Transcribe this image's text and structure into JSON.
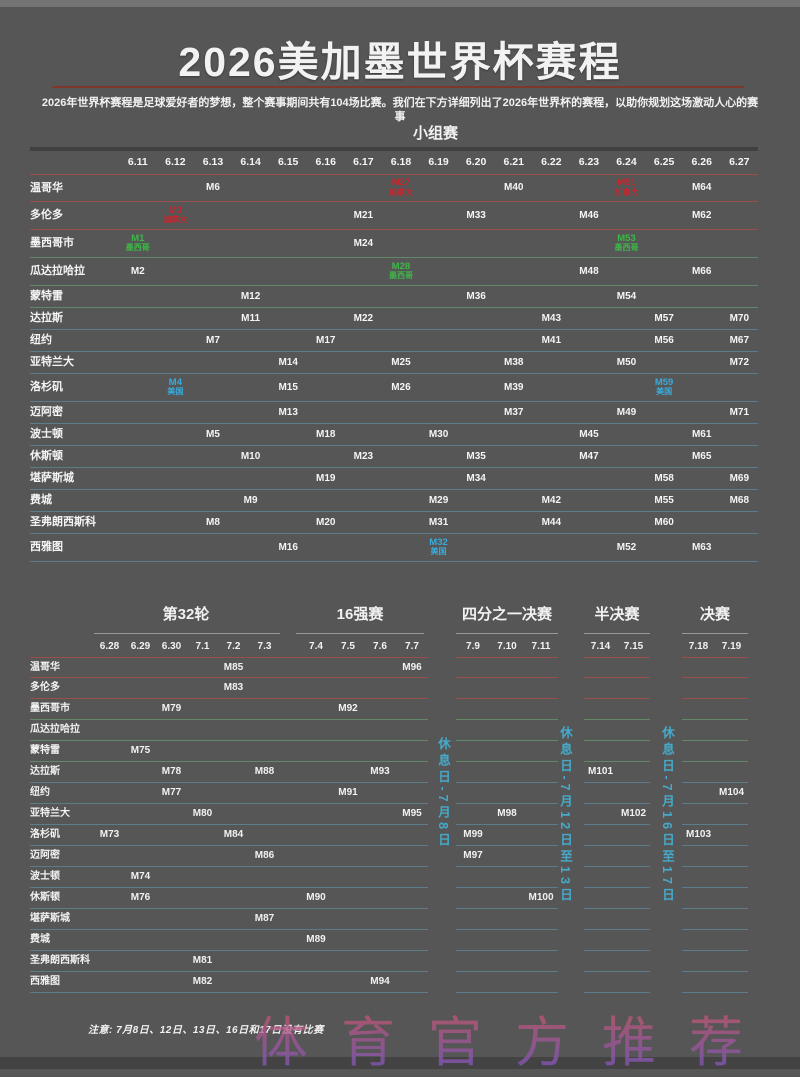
{
  "title": "2026美加墨世界杯赛程",
  "subtitle": "2026年世界杯赛程是足球爱好者的梦想，整个赛事期间共有104场比赛。我们在下方详细列出了2026年世界杯的赛程，以助你规划这场激动人心的赛事",
  "note": "注意: 7月8日、12日、13日、16日和17日没有比赛",
  "watermark": "体育官方推荐",
  "colors": {
    "background": "#565656",
    "mexico_green": "#3db848",
    "usa_blue": "#38abdc",
    "canada_red": "#c3282e",
    "title_rule_red": "#7d372b",
    "rest_day_cyan": "#45aacb",
    "watermark_top": "#c8566b",
    "watermark_bottom": "#7e58c8"
  },
  "chart_data": {
    "type": "table",
    "group_stage": {
      "title": "小组赛",
      "dates": [
        "6.11",
        "6.12",
        "6.13",
        "6.14",
        "6.15",
        "6.16",
        "6.17",
        "6.18",
        "6.19",
        "6.20",
        "6.21",
        "6.22",
        "6.23",
        "6.24",
        "6.25",
        "6.26",
        "6.27"
      ],
      "rows": [
        {
          "city": "温哥华",
          "country": "canada",
          "matches": [
            {
              "date": "6.13",
              "m": "M6"
            },
            {
              "date": "6.18",
              "m": "M27",
              "badge": "加拿大"
            },
            {
              "date": "6.21",
              "m": "M40"
            },
            {
              "date": "6.24",
              "m": "M51",
              "badge": "加拿大"
            },
            {
              "date": "6.26",
              "m": "M64"
            }
          ]
        },
        {
          "city": "多伦多",
          "country": "canada",
          "matches": [
            {
              "date": "6.12",
              "m": "M3",
              "badge": "加拿大"
            },
            {
              "date": "6.17",
              "m": "M21"
            },
            {
              "date": "6.20",
              "m": "M33"
            },
            {
              "date": "6.23",
              "m": "M46"
            },
            {
              "date": "6.26",
              "m": "M62"
            }
          ]
        },
        {
          "city": "墨西哥市",
          "country": "mexico",
          "matches": [
            {
              "date": "6.11",
              "m": "M1",
              "badge": "墨西哥"
            },
            {
              "date": "6.17",
              "m": "M24"
            },
            {
              "date": "6.24",
              "m": "M53",
              "badge": "墨西哥"
            }
          ]
        },
        {
          "city": "瓜达拉哈拉",
          "country": "mexico",
          "matches": [
            {
              "date": "6.11",
              "m": "M2"
            },
            {
              "date": "6.18",
              "m": "M28",
              "badge": "墨西哥"
            },
            {
              "date": "6.23",
              "m": "M48"
            },
            {
              "date": "6.26",
              "m": "M66"
            }
          ]
        },
        {
          "city": "蒙特雷",
          "country": "mexico",
          "matches": [
            {
              "date": "6.14",
              "m": "M12"
            },
            {
              "date": "6.20",
              "m": "M36"
            },
            {
              "date": "6.24",
              "m": "M54"
            }
          ]
        },
        {
          "city": "达拉斯",
          "country": "usa",
          "matches": [
            {
              "date": "6.14",
              "m": "M11"
            },
            {
              "date": "6.17",
              "m": "M22"
            },
            {
              "date": "6.22",
              "m": "M43"
            },
            {
              "date": "6.25",
              "m": "M57"
            },
            {
              "date": "6.27",
              "m": "M70"
            }
          ]
        },
        {
          "city": "纽约",
          "country": "usa",
          "matches": [
            {
              "date": "6.13",
              "m": "M7"
            },
            {
              "date": "6.16",
              "m": "M17"
            },
            {
              "date": "6.22",
              "m": "M41"
            },
            {
              "date": "6.25",
              "m": "M56"
            },
            {
              "date": "6.27",
              "m": "M67"
            }
          ]
        },
        {
          "city": "亚特兰大",
          "country": "usa",
          "matches": [
            {
              "date": "6.15",
              "m": "M14"
            },
            {
              "date": "6.18",
              "m": "M25"
            },
            {
              "date": "6.21",
              "m": "M38"
            },
            {
              "date": "6.24",
              "m": "M50"
            },
            {
              "date": "6.27",
              "m": "M72"
            }
          ]
        },
        {
          "city": "洛杉矶",
          "country": "usa",
          "matches": [
            {
              "date": "6.12",
              "m": "M4",
              "badge": "美国"
            },
            {
              "date": "6.15",
              "m": "M15"
            },
            {
              "date": "6.18",
              "m": "M26"
            },
            {
              "date": "6.21",
              "m": "M39"
            },
            {
              "date": "6.25",
              "m": "M59",
              "badge": "美国"
            }
          ]
        },
        {
          "city": "迈阿密",
          "country": "usa",
          "matches": [
            {
              "date": "6.15",
              "m": "M13"
            },
            {
              "date": "6.21",
              "m": "M37"
            },
            {
              "date": "6.24",
              "m": "M49"
            },
            {
              "date": "6.27",
              "m": "M71"
            }
          ]
        },
        {
          "city": "波士顿",
          "country": "usa",
          "matches": [
            {
              "date": "6.13",
              "m": "M5"
            },
            {
              "date": "6.16",
              "m": "M18"
            },
            {
              "date": "6.19",
              "m": "M30"
            },
            {
              "date": "6.23",
              "m": "M45"
            },
            {
              "date": "6.26",
              "m": "M61"
            }
          ]
        },
        {
          "city": "休斯顿",
          "country": "usa",
          "matches": [
            {
              "date": "6.14",
              "m": "M10"
            },
            {
              "date": "6.17",
              "m": "M23"
            },
            {
              "date": "6.20",
              "m": "M35"
            },
            {
              "date": "6.23",
              "m": "M47"
            },
            {
              "date": "6.26",
              "m": "M65"
            }
          ]
        },
        {
          "city": "堪萨斯城",
          "country": "usa",
          "matches": [
            {
              "date": "6.16",
              "m": "M19"
            },
            {
              "date": "6.20",
              "m": "M34"
            },
            {
              "date": "6.25",
              "m": "M58"
            },
            {
              "date": "6.27",
              "m": "M69"
            }
          ]
        },
        {
          "city": "费城",
          "country": "usa",
          "matches": [
            {
              "date": "6.14",
              "m": "M9"
            },
            {
              "date": "6.19",
              "m": "M29"
            },
            {
              "date": "6.22",
              "m": "M42"
            },
            {
              "date": "6.25",
              "m": "M55"
            },
            {
              "date": "6.27",
              "m": "M68"
            }
          ]
        },
        {
          "city": "圣弗朗西斯科",
          "country": "usa",
          "matches": [
            {
              "date": "6.13",
              "m": "M8"
            },
            {
              "date": "6.16",
              "m": "M20"
            },
            {
              "date": "6.19",
              "m": "M31"
            },
            {
              "date": "6.22",
              "m": "M44"
            },
            {
              "date": "6.25",
              "m": "M60"
            }
          ]
        },
        {
          "city": "西雅图",
          "country": "usa",
          "matches": [
            {
              "date": "6.15",
              "m": "M16"
            },
            {
              "date": "6.19",
              "m": "M32",
              "badge": "美国"
            },
            {
              "date": "6.24",
              "m": "M52"
            },
            {
              "date": "6.26",
              "m": "M63"
            }
          ]
        }
      ]
    },
    "knockout": {
      "sections": [
        {
          "title": "第32轮",
          "dates": [
            "6.28",
            "6.29",
            "6.30",
            "7.1",
            "7.2",
            "7.3"
          ]
        },
        {
          "title": "16强赛",
          "dates": [
            "7.4",
            "7.5",
            "7.6",
            "7.7"
          ]
        },
        {
          "title": "四分之一决赛",
          "dates": [
            "7.9",
            "7.10",
            "7.11"
          ]
        },
        {
          "title": "半决赛",
          "dates": [
            "7.14",
            "7.15"
          ]
        },
        {
          "title": "决赛",
          "dates": [
            "7.18",
            "7.19"
          ]
        }
      ],
      "rest_days": [
        "休息日-7月8日",
        "休息日-7月12日至13日",
        "休息日-7月16日至17日"
      ],
      "rows": [
        {
          "city": "温哥华",
          "country": "canada",
          "matches": [
            {
              "date": "7.2",
              "m": "M85"
            },
            {
              "date": "7.7",
              "m": "M96"
            }
          ]
        },
        {
          "city": "多伦多",
          "country": "canada",
          "matches": [
            {
              "date": "7.2",
              "m": "M83"
            }
          ]
        },
        {
          "city": "墨西哥市",
          "country": "mexico",
          "matches": [
            {
              "date": "6.30",
              "m": "M79"
            },
            {
              "date": "7.5",
              "m": "M92"
            }
          ]
        },
        {
          "city": "瓜达拉哈拉",
          "country": "mexico",
          "matches": []
        },
        {
          "city": "蒙特雷",
          "country": "mexico",
          "matches": [
            {
              "date": "6.29",
              "m": "M75"
            }
          ]
        },
        {
          "city": "达拉斯",
          "country": "usa",
          "matches": [
            {
              "date": "6.30",
              "m": "M78"
            },
            {
              "date": "7.3",
              "m": "M88"
            },
            {
              "date": "7.6",
              "m": "M93"
            },
            {
              "date": "7.14",
              "m": "M101"
            }
          ]
        },
        {
          "city": "纽约",
          "country": "usa",
          "matches": [
            {
              "date": "6.30",
              "m": "M77"
            },
            {
              "date": "7.5",
              "m": "M91"
            },
            {
              "date": "7.19",
              "m": "M104"
            }
          ]
        },
        {
          "city": "亚特兰大",
          "country": "usa",
          "matches": [
            {
              "date": "7.1",
              "m": "M80"
            },
            {
              "date": "7.7",
              "m": "M95"
            },
            {
              "date": "7.10",
              "m": "M98"
            },
            {
              "date": "7.15",
              "m": "M102"
            }
          ]
        },
        {
          "city": "洛杉矶",
          "country": "usa",
          "matches": [
            {
              "date": "6.28",
              "m": "M73"
            },
            {
              "date": "7.2",
              "m": "M84"
            },
            {
              "date": "7.9",
              "m": "M99"
            },
            {
              "date": "7.18",
              "m": "M103"
            }
          ]
        },
        {
          "city": "迈阿密",
          "country": "usa",
          "matches": [
            {
              "date": "7.3",
              "m": "M86"
            },
            {
              "date": "7.9",
              "m": "M97"
            }
          ]
        },
        {
          "city": "波士顿",
          "country": "usa",
          "matches": [
            {
              "date": "6.29",
              "m": "M74"
            }
          ]
        },
        {
          "city": "休斯顿",
          "country": "usa",
          "matches": [
            {
              "date": "6.29",
              "m": "M76"
            },
            {
              "date": "7.4",
              "m": "M90"
            },
            {
              "date": "7.11",
              "m": "M100"
            }
          ]
        },
        {
          "city": "堪萨斯城",
          "country": "usa",
          "matches": [
            {
              "date": "7.3",
              "m": "M87"
            }
          ]
        },
        {
          "city": "费城",
          "country": "usa",
          "matches": [
            {
              "date": "7.4",
              "m": "M89"
            }
          ]
        },
        {
          "city": "圣弗朗西斯科",
          "country": "usa",
          "matches": [
            {
              "date": "7.1",
              "m": "M81"
            }
          ]
        },
        {
          "city": "西雅图",
          "country": "usa",
          "matches": [
            {
              "date": "7.1",
              "m": "M82"
            },
            {
              "date": "7.6",
              "m": "M94"
            }
          ]
        }
      ]
    }
  }
}
